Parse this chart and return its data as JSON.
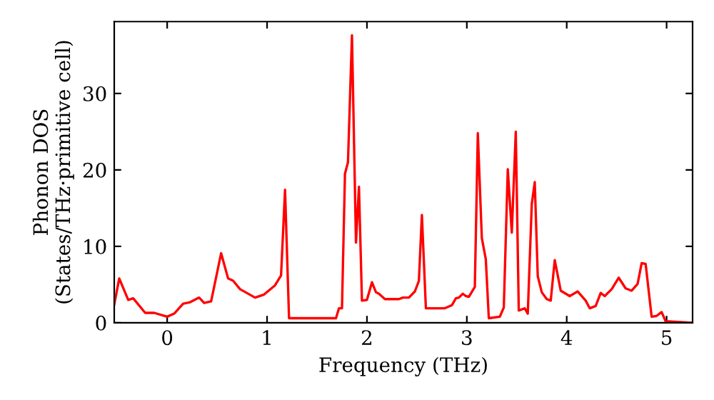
{
  "chart_data": {
    "type": "line",
    "xlabel": "Frequency (THz)",
    "ylabel": "Phonon DOS\n(States/THz·primitive cell)",
    "xlim": [
      -0.53,
      5.26
    ],
    "ylim": [
      0,
      39.4
    ],
    "xticks": [
      0,
      1,
      2,
      3,
      4,
      5
    ],
    "yticks": [
      0,
      10,
      20,
      30
    ],
    "grid": false,
    "legend": false,
    "marker": "none",
    "line_style": "solid",
    "series": [
      {
        "color": "#ff0000",
        "x": [
          -0.53,
          -0.48,
          -0.39,
          -0.34,
          -0.22,
          -0.13,
          0.0,
          0.07,
          0.16,
          0.23,
          0.32,
          0.37,
          0.44,
          0.54,
          0.61,
          0.66,
          0.73,
          0.88,
          0.97,
          1.08,
          1.14,
          1.18,
          1.22,
          1.69,
          1.72,
          1.75,
          1.78,
          1.81,
          1.85,
          1.89,
          1.92,
          1.95,
          2.0,
          2.05,
          2.09,
          2.12,
          2.18,
          2.32,
          2.36,
          2.42,
          2.48,
          2.52,
          2.55,
          2.59,
          2.78,
          2.85,
          2.89,
          2.92,
          2.96,
          2.99,
          3.02,
          3.08,
          3.11,
          3.15,
          3.19,
          3.22,
          3.33,
          3.37,
          3.41,
          3.45,
          3.49,
          3.52,
          3.58,
          3.61,
          3.65,
          3.68,
          3.71,
          3.75,
          3.8,
          3.84,
          3.88,
          3.94,
          4.03,
          4.11,
          4.19,
          4.23,
          4.29,
          4.34,
          4.38,
          4.45,
          4.52,
          4.59,
          4.65,
          4.71,
          4.75,
          4.79,
          4.85,
          4.9,
          4.95,
          4.99,
          5.26
        ],
        "values": [
          2.4,
          5.8,
          3.0,
          3.2,
          1.3,
          1.3,
          0.8,
          1.2,
          2.5,
          2.7,
          3.3,
          2.6,
          2.8,
          9.1,
          5.8,
          5.5,
          4.4,
          3.3,
          3.7,
          4.9,
          6.2,
          17.4,
          0.6,
          0.6,
          1.9,
          1.9,
          19.5,
          21,
          37.6,
          10.5,
          17.8,
          2.9,
          3.0,
          5.3,
          4.0,
          3.8,
          3.1,
          3.1,
          3.3,
          3.3,
          4.1,
          5.5,
          14.1,
          1.9,
          1.9,
          2.3,
          3.2,
          3.3,
          3.8,
          3.5,
          3.4,
          4.7,
          24.8,
          11.1,
          8.3,
          0.6,
          0.8,
          2.0,
          20.1,
          11.8,
          25.0,
          1.6,
          1.9,
          1.2,
          15.5,
          18.4,
          6.1,
          4.0,
          3.1,
          2.9,
          8.2,
          4.2,
          3.5,
          4.1,
          2.9,
          1.9,
          2.2,
          3.9,
          3.5,
          4.4,
          5.9,
          4.5,
          4.2,
          5.1,
          7.8,
          7.7,
          0.8,
          0.9,
          1.4,
          0.2,
          0.0
        ]
      }
    ]
  }
}
